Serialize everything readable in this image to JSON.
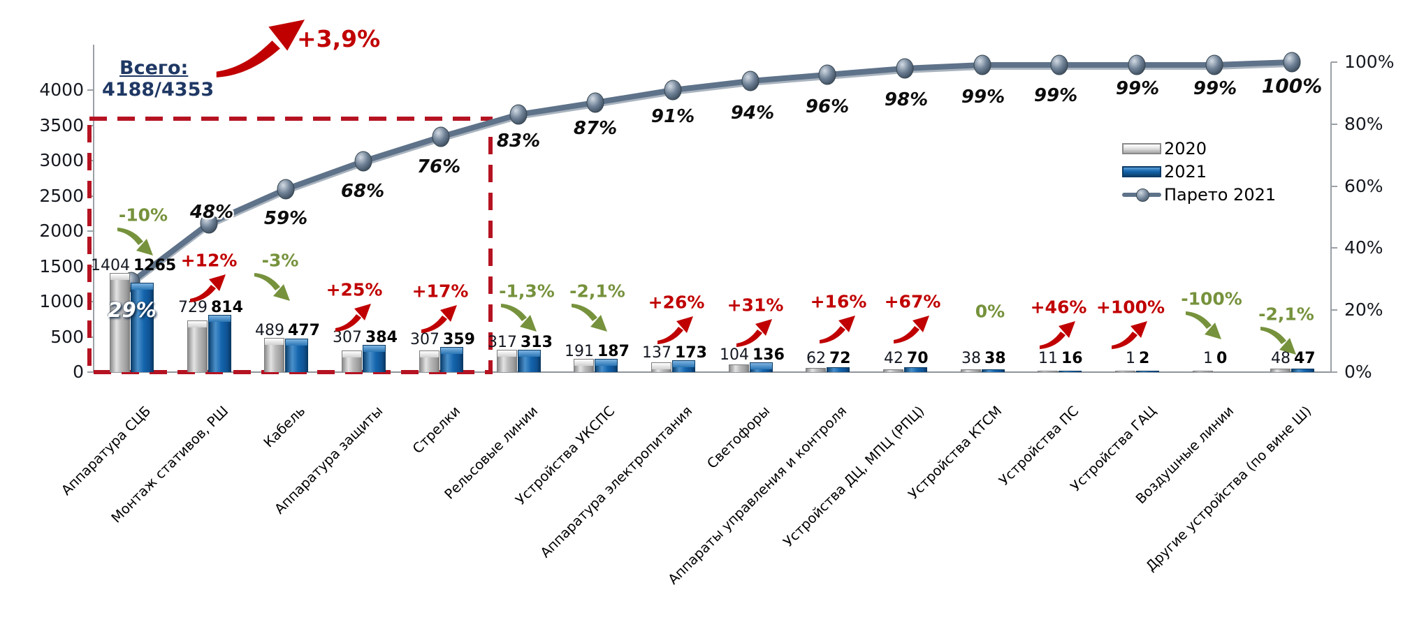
{
  "header": {
    "total_label": "Всего:",
    "total_value": "4188/4353",
    "total_change_label": "+3,9%"
  },
  "legend": {
    "items": [
      {
        "label": "2020",
        "swatch": "bar-gray"
      },
      {
        "label": "2021",
        "swatch": "bar-blue"
      },
      {
        "label": "Парето 2021",
        "swatch": "line"
      }
    ]
  },
  "axes": {
    "left": {
      "ticks": [
        "0",
        "500",
        "1000",
        "1500",
        "2000",
        "2500",
        "3000",
        "3500",
        "4000"
      ],
      "max": 4000
    },
    "right": {
      "ticks": [
        "0%",
        "20%",
        "40%",
        "60%",
        "80%",
        "100%"
      ]
    }
  },
  "colors": {
    "red": "#C00000",
    "green": "#76923C",
    "navy": "#1F3864",
    "bar_2020": "#b5b5b5",
    "bar_2021": "#1465AD",
    "pareto_line": "#5E7289",
    "highlight_box": "#B51322"
  },
  "chart_data": {
    "type": "bar+line (pareto)",
    "title": "Всего: 4188/4353 (+3,9%)",
    "categories": [
      "Аппаратура СЦБ",
      "Монтаж стативов, РШ",
      "Кабель",
      "Аппаратура защиты",
      "Стрелки",
      "Рельсовые линии",
      "Устройства УКСПС",
      "Аппаратура электропитания",
      "Светофоры",
      "Аппараты управления и контроля",
      "Устройства ДЦ, МПЦ (РПЦ)",
      "Устройства КТСМ",
      "Устройства ПС",
      "Устройства ГАЦ",
      "Воздушные линии",
      "Другие устройства (по вине Ш)"
    ],
    "series": [
      {
        "name": "2020",
        "type": "bar",
        "values": [
          1404,
          729,
          489,
          307,
          307,
          317,
          191,
          137,
          104,
          62,
          42,
          38,
          11,
          1,
          1,
          48
        ]
      },
      {
        "name": "2021",
        "type": "bar",
        "values": [
          1265,
          814,
          477,
          384,
          359,
          313,
          187,
          173,
          136,
          72,
          70,
          38,
          16,
          2,
          0,
          47
        ]
      },
      {
        "name": "Парето 2021",
        "type": "line",
        "cumulative_pct": [
          29,
          48,
          59,
          68,
          76,
          83,
          87,
          91,
          94,
          96,
          98,
          99,
          99,
          99,
          99,
          100
        ],
        "point_labels": [
          "29%",
          "48%",
          "59%",
          "68%",
          "76%",
          "83%",
          "87%",
          "91%",
          "94%",
          "96%",
          "98%",
          "99%",
          "99%",
          "99%",
          "99%",
          "100%"
        ]
      }
    ],
    "change_labels": [
      {
        "label": "-10%",
        "trend": "down"
      },
      {
        "label": "+12%",
        "trend": "up"
      },
      {
        "label": "-3%",
        "trend": "down"
      },
      {
        "label": "+25%",
        "trend": "up"
      },
      {
        "label": "+17%",
        "trend": "up"
      },
      {
        "label": "-1,3%",
        "trend": "down"
      },
      {
        "label": "-2,1%",
        "trend": "down"
      },
      {
        "label": "+26%",
        "trend": "up"
      },
      {
        "label": "+31%",
        "trend": "up"
      },
      {
        "label": "+16%",
        "trend": "up"
      },
      {
        "label": "+67%",
        "trend": "up"
      },
      {
        "label": "0%",
        "trend": "flat"
      },
      {
        "label": "+46%",
        "trend": "up"
      },
      {
        "label": "+100%",
        "trend": "up"
      },
      {
        "label": "-100%",
        "trend": "down"
      },
      {
        "label": "-2,1%",
        "trend": "down"
      }
    ],
    "highlight_box": {
      "covers_first_n_categories": 5,
      "style": "red dashed rectangle"
    },
    "ylim_left": [
      0,
      4000
    ],
    "ylim_right_pct": [
      0,
      100
    ],
    "grid": false,
    "legend_position": "right"
  }
}
